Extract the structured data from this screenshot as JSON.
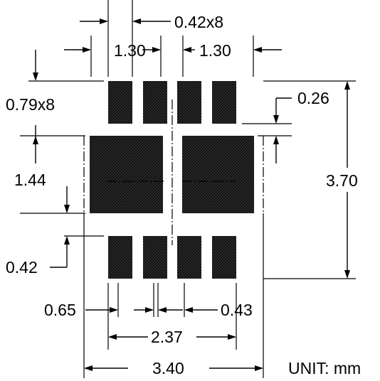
{
  "diagram": {
    "pad_color": "#1a1a1a",
    "labels": {
      "pad_width": "0.42x8",
      "pitch_left": "1.30",
      "pitch_right": "1.30",
      "pad_length": "0.79x8",
      "gap_top": "0.26",
      "thermal_height": "1.44",
      "overall_height": "3.70",
      "gap_bottom": "0.42",
      "pad_gap_left": "0.65",
      "pad_gap_right": "0.43",
      "pad_span": "2.37",
      "overall_width": "3.40",
      "unit": "UNIT: mm"
    }
  }
}
